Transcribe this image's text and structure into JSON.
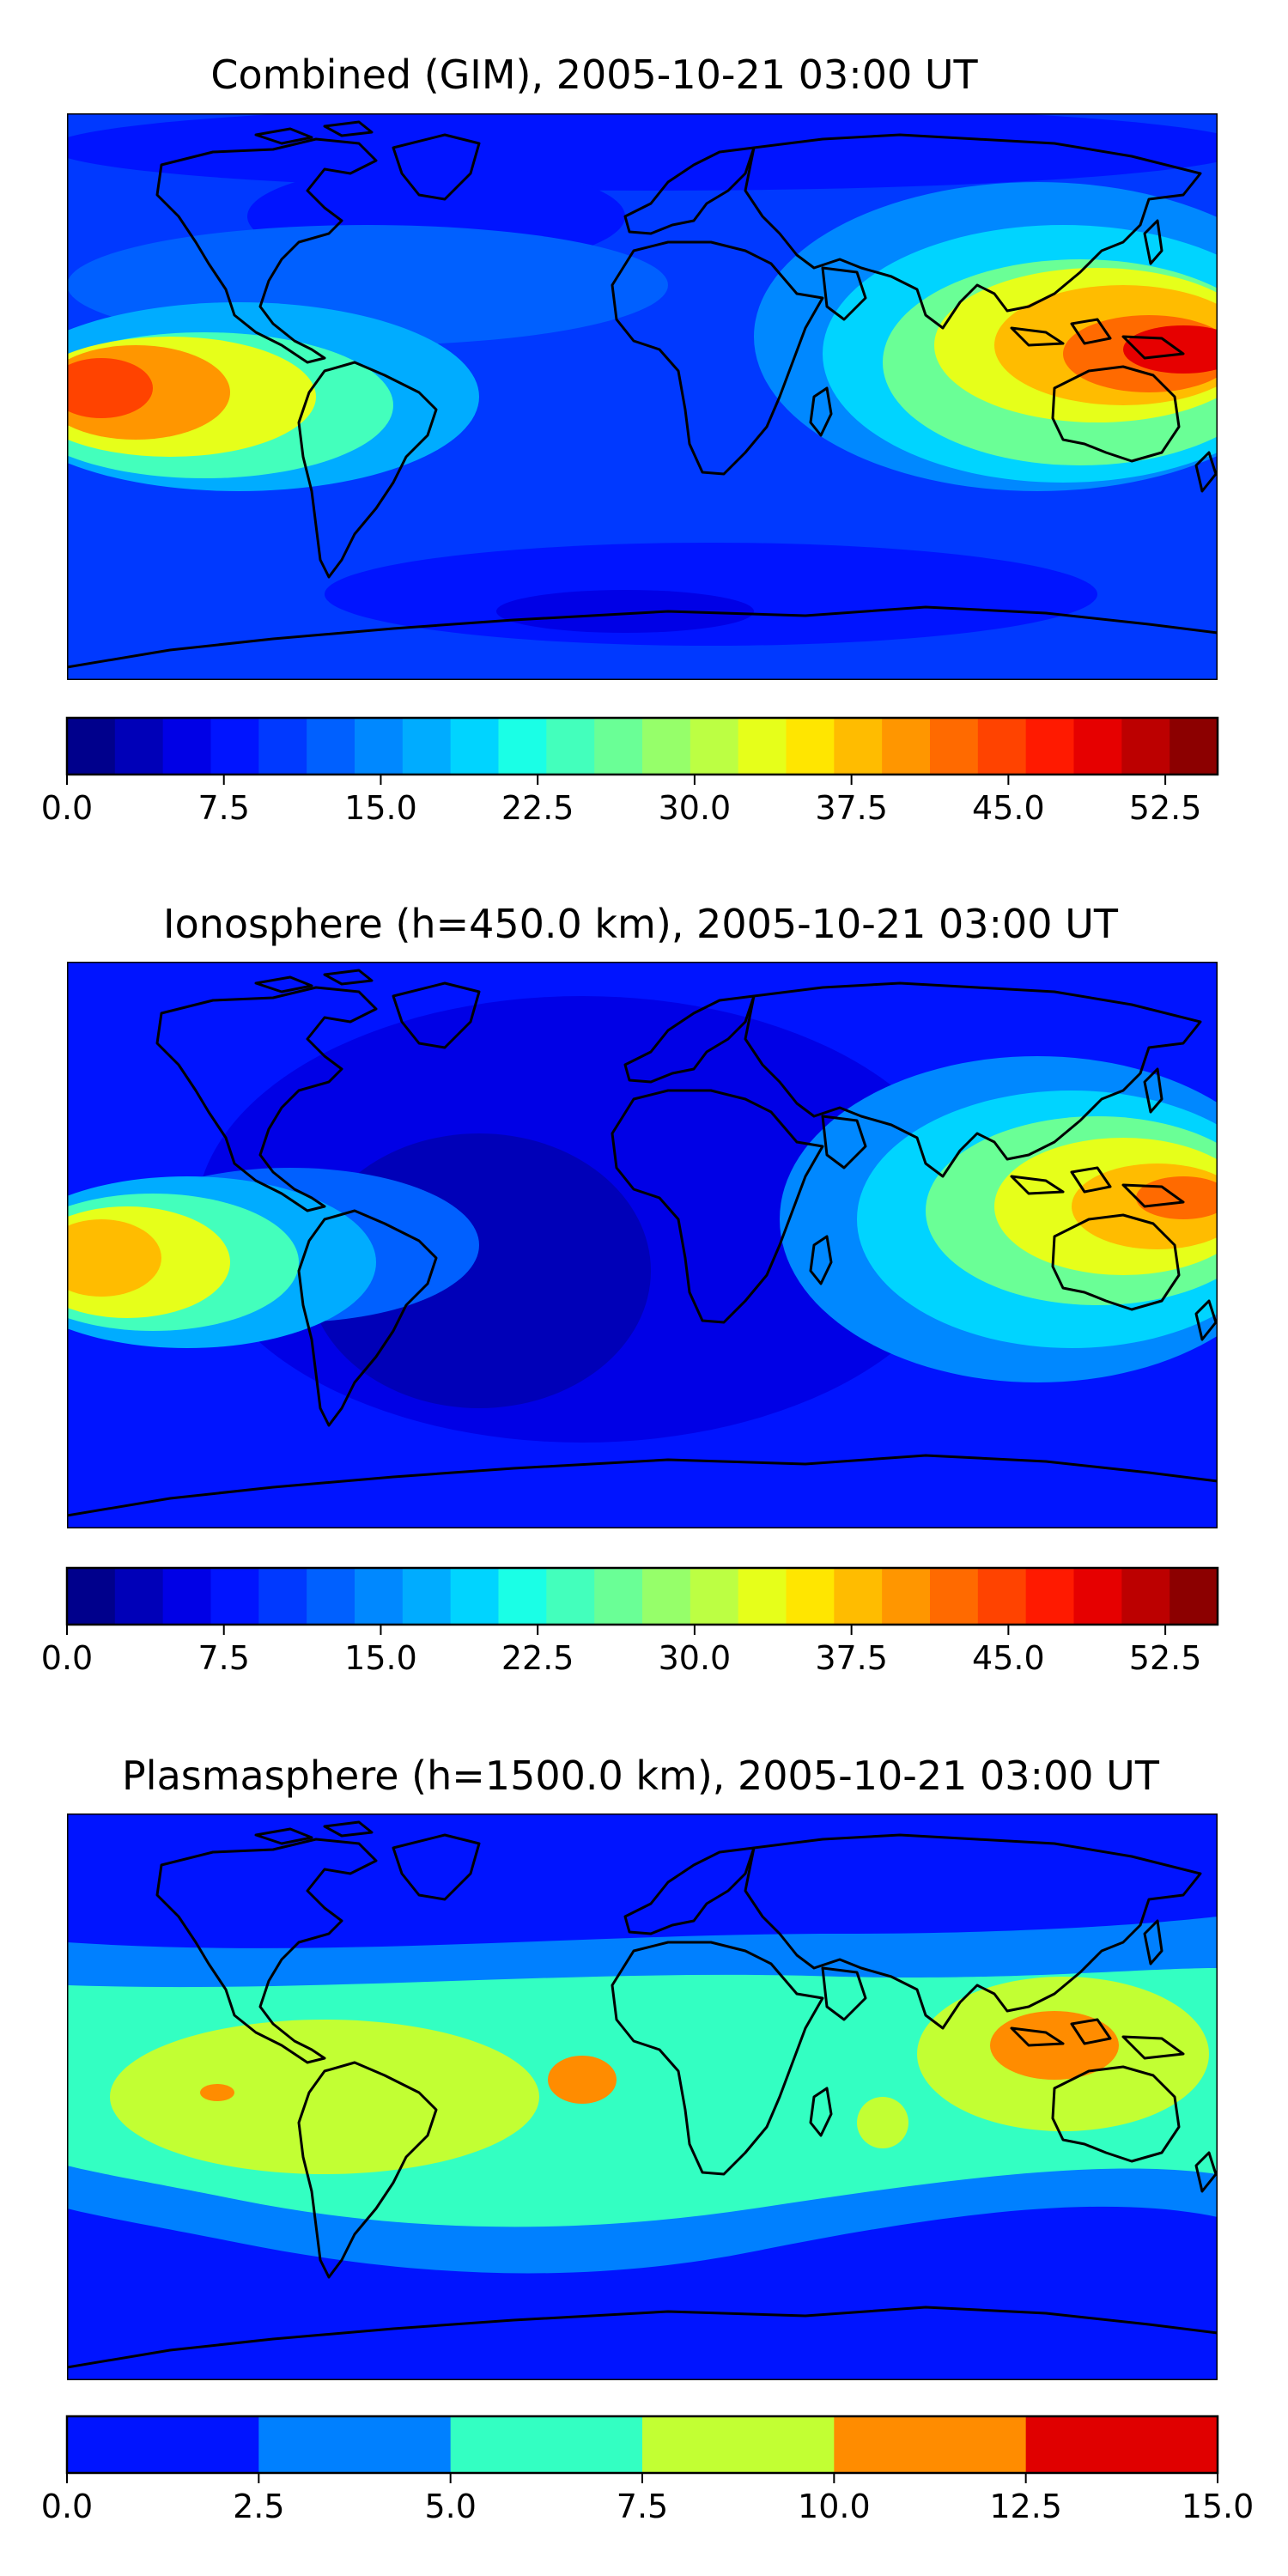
{
  "panels": [
    {
      "title": "Combined (GIM), 2005-10-21 03:00 UT",
      "colorbar": {
        "min": 0.0,
        "max": 55.0,
        "step": 2.5,
        "ticks": [
          "0.0",
          "7.5",
          "15.0",
          "22.5",
          "30.0",
          "37.5",
          "45.0",
          "52.5"
        ],
        "tick_values": [
          0,
          7.5,
          15,
          22.5,
          30,
          37.5,
          45,
          52.5
        ],
        "colors": [
          "#00008c",
          "#0000b8",
          "#0000e6",
          "#0014ff",
          "#0039ff",
          "#0060ff",
          "#0088ff",
          "#00acff",
          "#00d4ff",
          "#1affe6",
          "#43ffbc",
          "#6aff96",
          "#96ff6a",
          "#bcff43",
          "#e6ff1a",
          "#ffe600",
          "#ffbc00",
          "#ff9600",
          "#ff6a00",
          "#ff4300",
          "#ff1a00",
          "#e60000",
          "#bc0000",
          "#8c0000"
        ]
      }
    },
    {
      "title": "Ionosphere  (h=450.0 km), 2005-10-21 03:00 UT",
      "colorbar": {
        "min": 0.0,
        "max": 55.0,
        "step": 2.5,
        "ticks": [
          "0.0",
          "7.5",
          "15.0",
          "22.5",
          "30.0",
          "37.5",
          "45.0",
          "52.5"
        ],
        "tick_values": [
          0,
          7.5,
          15,
          22.5,
          30,
          37.5,
          45,
          52.5
        ],
        "colors": [
          "#00008c",
          "#0000b8",
          "#0000e6",
          "#0014ff",
          "#0039ff",
          "#0060ff",
          "#0088ff",
          "#00acff",
          "#00d4ff",
          "#1affe6",
          "#43ffbc",
          "#6aff96",
          "#96ff6a",
          "#bcff43",
          "#e6ff1a",
          "#ffe600",
          "#ffbc00",
          "#ff9600",
          "#ff6a00",
          "#ff4300",
          "#ff1a00",
          "#e60000",
          "#bc0000",
          "#8c0000"
        ]
      }
    },
    {
      "title": "Plasmasphere (h=1500.0 km), 2005-10-21 03:00 UT",
      "colorbar": {
        "min": 0.0,
        "max": 15.0,
        "step": 2.5,
        "ticks": [
          "0.0",
          "2.5",
          "5.0",
          "7.5",
          "10.0",
          "12.5",
          "15.0"
        ],
        "tick_values": [
          0,
          2.5,
          5,
          7.5,
          10,
          12.5,
          15
        ],
        "colors": [
          "#0014ff",
          "#0080ff",
          "#33ffc2",
          "#c2ff33",
          "#ff8c00",
          "#e00000"
        ]
      }
    }
  ]
}
